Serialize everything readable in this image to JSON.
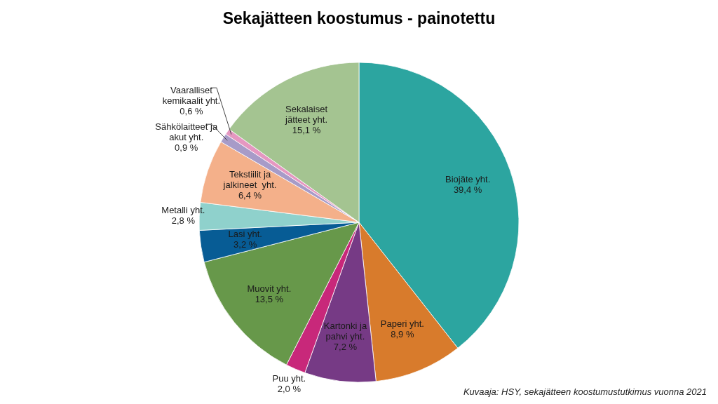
{
  "chart_data": {
    "type": "pie",
    "title": "Sekajätteen koostumus - painotettu",
    "categories": [
      "Biojäte yht.",
      "Paperi yht.",
      "Kartonki ja pahvi yht.",
      "Puu yht.",
      "Muovit yht.",
      "Lasi yht.",
      "Metalli yht.",
      "Tekstiilit ja jalkineet  yht.",
      "Sähkölaitteet ja akut yht.",
      "Vaaralliset kemikaalit yht.",
      "Sekalaiset jätteet yht."
    ],
    "values": [
      39.4,
      8.9,
      7.2,
      2.0,
      13.5,
      3.2,
      2.8,
      6.4,
      0.9,
      0.6,
      15.1
    ],
    "value_labels": [
      "39,4 %",
      "8,9 %",
      "7,2 %",
      "2,0 %",
      "13,5 %",
      "3,2 %",
      "2,8 %",
      "6,4 %",
      "0,9 %",
      "0,6 %",
      "15,1 %"
    ],
    "colors": [
      "#2ca5a0",
      "#d87b2c",
      "#763a85",
      "#c8287a",
      "#67984a",
      "#075c95",
      "#8fd1cc",
      "#f4b08a",
      "#a79bc8",
      "#e597c1",
      "#a4c491"
    ],
    "annotations": [
      "Kuvaaja: HSY, sekajätteen koostumustutkimus vuonna 2021"
    ]
  }
}
